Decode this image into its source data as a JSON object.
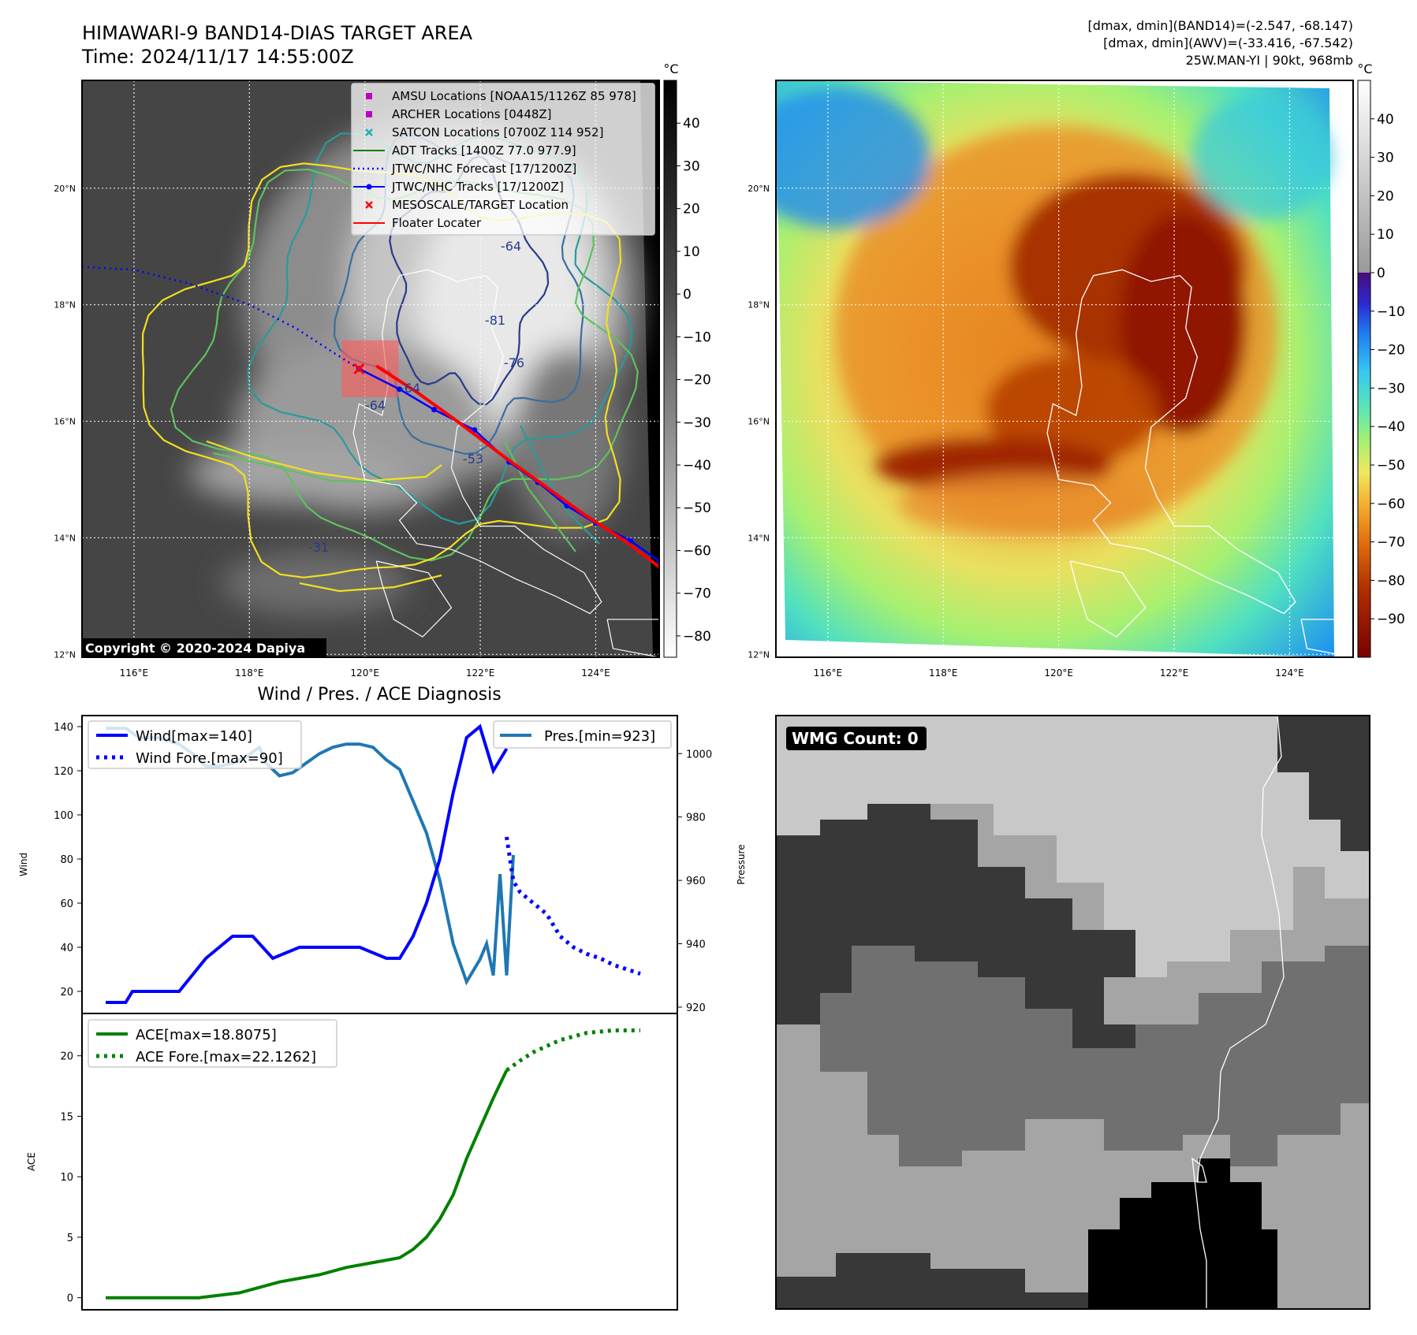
{
  "header": {
    "title_line1": "HIMAWARI-9 BAND14-DIAS TARGET AREA",
    "title_line2": "Time: 2024/11/17 14:55:00Z",
    "info_line1": "[dmax, dmin](BAND14)=(-2.547, -68.147)",
    "info_line2": "[dmax, dmin](AWV)=(-33.416, -67.542)",
    "info_line3": "25W.MAN-YI | 90kt, 968mb"
  },
  "map_axes": {
    "lon_labels": [
      "116°E",
      "118°E",
      "120°E",
      "122°E",
      "124°E"
    ],
    "lat_labels": [
      "20°N",
      "18°N",
      "16°N",
      "14°N",
      "12°N"
    ],
    "lon_range": [
      115.1,
      125.1
    ],
    "lat_range": [
      11.95,
      21.85
    ]
  },
  "ir_map": {
    "legend": [
      {
        "label": "AMSU Locations [NOAA15/1126Z 85 978]",
        "marker": "square",
        "color": "#c000c0"
      },
      {
        "label": "ARCHER Locations [0448Z]",
        "marker": "square",
        "color": "#c000c0"
      },
      {
        "label": "SATCON Locations [0700Z 114 952]",
        "marker": "x",
        "color": "#20b0b0"
      },
      {
        "label": "ADT Tracks [1400Z 77.0 977.9]",
        "marker": "line",
        "color": "#008000"
      },
      {
        "label": "JTWC/NHC Forecast [17/1200Z]",
        "marker": "dotted",
        "color": "#0000ff"
      },
      {
        "label": "JTWC/NHC Tracks [17/1200Z]",
        "marker": "line-dot",
        "color": "#0000ff"
      },
      {
        "label": "MESOSCALE/TARGET Location",
        "marker": "x",
        "color": "#ff0000"
      },
      {
        "label": "Floater Locater",
        "marker": "line",
        "color": "#ff0000"
      }
    ],
    "contour_labels": [
      "-81",
      "-76",
      "-64",
      "-64",
      "-64",
      "-53",
      "-31"
    ],
    "copyright": "Copyright © 2020-2024 Dapiya",
    "target_lon": 119.9,
    "target_lat": 16.9
  },
  "colorbar_ir": {
    "unit": "°C",
    "ticks": [
      "40",
      "30",
      "20",
      "10",
      "0",
      "−10",
      "−20",
      "−30",
      "−40",
      "−50",
      "−60",
      "−70",
      "−80"
    ],
    "range": [
      -85,
      50
    ]
  },
  "colorbar_awv": {
    "unit": "°C",
    "ticks": [
      "40",
      "30",
      "20",
      "10",
      "0",
      "−10",
      "−20",
      "−30",
      "−40",
      "−50",
      "−60",
      "−70",
      "−80",
      "−90"
    ],
    "range": [
      -100,
      50
    ]
  },
  "tracks": {
    "forecast_lon": [
      115.1,
      116.0,
      117.0,
      118.0,
      118.8,
      119.5,
      119.9
    ],
    "forecast_lat": [
      18.65,
      18.6,
      18.35,
      18.0,
      17.6,
      17.15,
      16.9
    ],
    "best_lon": [
      119.9,
      120.6,
      121.2,
      121.9,
      122.5,
      123.0,
      123.5,
      124.0,
      124.6,
      125.1
    ],
    "best_lat": [
      16.9,
      16.55,
      16.2,
      15.85,
      15.3,
      14.95,
      14.55,
      14.25,
      13.95,
      13.6
    ],
    "floater_lon": [
      120.2,
      120.9,
      121.6,
      122.4,
      123.1,
      123.8,
      124.5,
      125.1
    ],
    "floater_lat": [
      16.95,
      16.5,
      16.0,
      15.4,
      14.9,
      14.4,
      13.95,
      13.5
    ]
  },
  "chart_data": [
    {
      "type": "line",
      "title": "Wind / Pres. / ACE Diagnosis",
      "ylabel": "Wind",
      "ylabel_right": "Pressure",
      "ylim": [
        10,
        145
      ],
      "ylim_right": [
        918,
        1012
      ],
      "yticks": [
        20,
        40,
        60,
        80,
        100,
        120,
        140
      ],
      "yticks_right": [
        920,
        940,
        960,
        980,
        1000
      ],
      "series": [
        {
          "name": "Wind[max=140]",
          "axis": "left",
          "style": "solid",
          "color": "#0000ff",
          "x": [
            0,
            3,
            4,
            7,
            11,
            15,
            19,
            22,
            25,
            29,
            34,
            38,
            42,
            44,
            46,
            48,
            50,
            52,
            54,
            56,
            58,
            59,
            60
          ],
          "values": [
            15,
            15,
            20,
            20,
            20,
            35,
            45,
            45,
            35,
            40,
            40,
            40,
            35,
            35,
            45,
            60,
            80,
            110,
            135,
            140,
            120,
            125,
            130
          ]
        },
        {
          "name": "Wind Fore.[max=90]",
          "axis": "left",
          "style": "dotted",
          "color": "#0000ff",
          "x": [
            60,
            61,
            62,
            64,
            66,
            68,
            70,
            72,
            74,
            76,
            78,
            80
          ],
          "values": [
            90,
            70,
            65,
            60,
            55,
            45,
            40,
            37,
            35,
            32,
            30,
            28
          ]
        },
        {
          "name": "Pres.[min=923]",
          "axis": "right",
          "style": "solid",
          "color": "#1f77b4",
          "x": [
            0,
            3,
            5,
            8,
            11,
            13,
            15,
            17,
            19,
            21,
            23,
            24,
            26,
            28,
            30,
            32,
            34,
            36,
            38,
            40,
            42,
            44,
            46,
            48,
            50,
            52,
            54,
            56,
            57,
            58,
            59,
            60,
            61
          ],
          "values": [
            1008,
            1008,
            1005,
            1005,
            1003,
            1000,
            996,
            996,
            997,
            999,
            1002,
            997,
            993,
            994,
            997,
            1000,
            1002,
            1003,
            1003,
            1002,
            998,
            995,
            985,
            975,
            960,
            940,
            928,
            935,
            940,
            930,
            962,
            930,
            968
          ]
        }
      ]
    },
    {
      "type": "line",
      "ylabel": "ACE",
      "ylim": [
        -1,
        23.5
      ],
      "yticks": [
        0,
        5,
        10,
        15,
        20
      ],
      "series": [
        {
          "name": "ACE[max=18.8075]",
          "style": "solid",
          "color": "#008000",
          "x": [
            0,
            10,
            14,
            20,
            26,
            32,
            36,
            40,
            44,
            46,
            48,
            50,
            52,
            54,
            56,
            58,
            60
          ],
          "values": [
            0,
            0,
            0,
            0.4,
            1.3,
            1.9,
            2.5,
            2.9,
            3.3,
            4.0,
            5.0,
            6.5,
            8.5,
            11.5,
            14.0,
            16.5,
            18.8
          ]
        },
        {
          "name": "ACE Fore.[max=22.1262]",
          "style": "dotted",
          "color": "#008000",
          "x": [
            60,
            62,
            64,
            66,
            68,
            70,
            72,
            74,
            76,
            78,
            80
          ],
          "values": [
            18.8,
            19.6,
            20.3,
            20.8,
            21.3,
            21.6,
            21.9,
            22.0,
            22.1,
            22.1,
            22.1
          ]
        }
      ]
    }
  ],
  "wmg_panel": {
    "badge": "WMG Count: 0"
  }
}
